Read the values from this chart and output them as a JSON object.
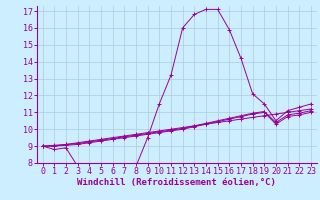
{
  "xlabel": "Windchill (Refroidissement éolien,°C)",
  "bg_color": "#cceeff",
  "line_color": "#990099",
  "grid_color": "#aaccdd",
  "xlim": [
    -0.5,
    23.5
  ],
  "ylim": [
    8,
    17.3
  ],
  "yticks": [
    8,
    9,
    10,
    11,
    12,
    13,
    14,
    15,
    16,
    17
  ],
  "xticks": [
    0,
    1,
    2,
    3,
    4,
    5,
    6,
    7,
    8,
    9,
    10,
    11,
    12,
    13,
    14,
    15,
    16,
    17,
    18,
    19,
    20,
    21,
    22,
    23
  ],
  "series": [
    [
      9.0,
      8.8,
      8.9,
      7.8,
      7.8,
      7.8,
      7.8,
      7.9,
      7.8,
      9.5,
      11.5,
      13.2,
      16.0,
      16.8,
      17.1,
      17.1,
      15.9,
      14.2,
      12.1,
      11.5,
      10.5,
      11.1,
      11.3,
      11.5
    ],
    [
      9.0,
      9.0,
      9.1,
      9.2,
      9.3,
      9.4,
      9.5,
      9.6,
      9.7,
      9.8,
      9.9,
      10.0,
      10.1,
      10.2,
      10.3,
      10.4,
      10.5,
      10.6,
      10.7,
      10.8,
      10.9,
      11.0,
      11.1,
      11.2
    ],
    [
      9.0,
      9.05,
      9.1,
      9.15,
      9.25,
      9.35,
      9.45,
      9.55,
      9.65,
      9.75,
      9.85,
      9.95,
      10.05,
      10.2,
      10.35,
      10.5,
      10.65,
      10.8,
      10.95,
      11.05,
      10.4,
      10.85,
      10.95,
      11.1
    ],
    [
      9.0,
      9.0,
      9.05,
      9.1,
      9.2,
      9.3,
      9.4,
      9.5,
      9.6,
      9.7,
      9.8,
      9.9,
      10.0,
      10.15,
      10.3,
      10.45,
      10.6,
      10.75,
      10.9,
      11.0,
      10.3,
      10.75,
      10.85,
      11.0
    ]
  ],
  "tick_fontsize": 6,
  "xlabel_fontsize": 6.5
}
